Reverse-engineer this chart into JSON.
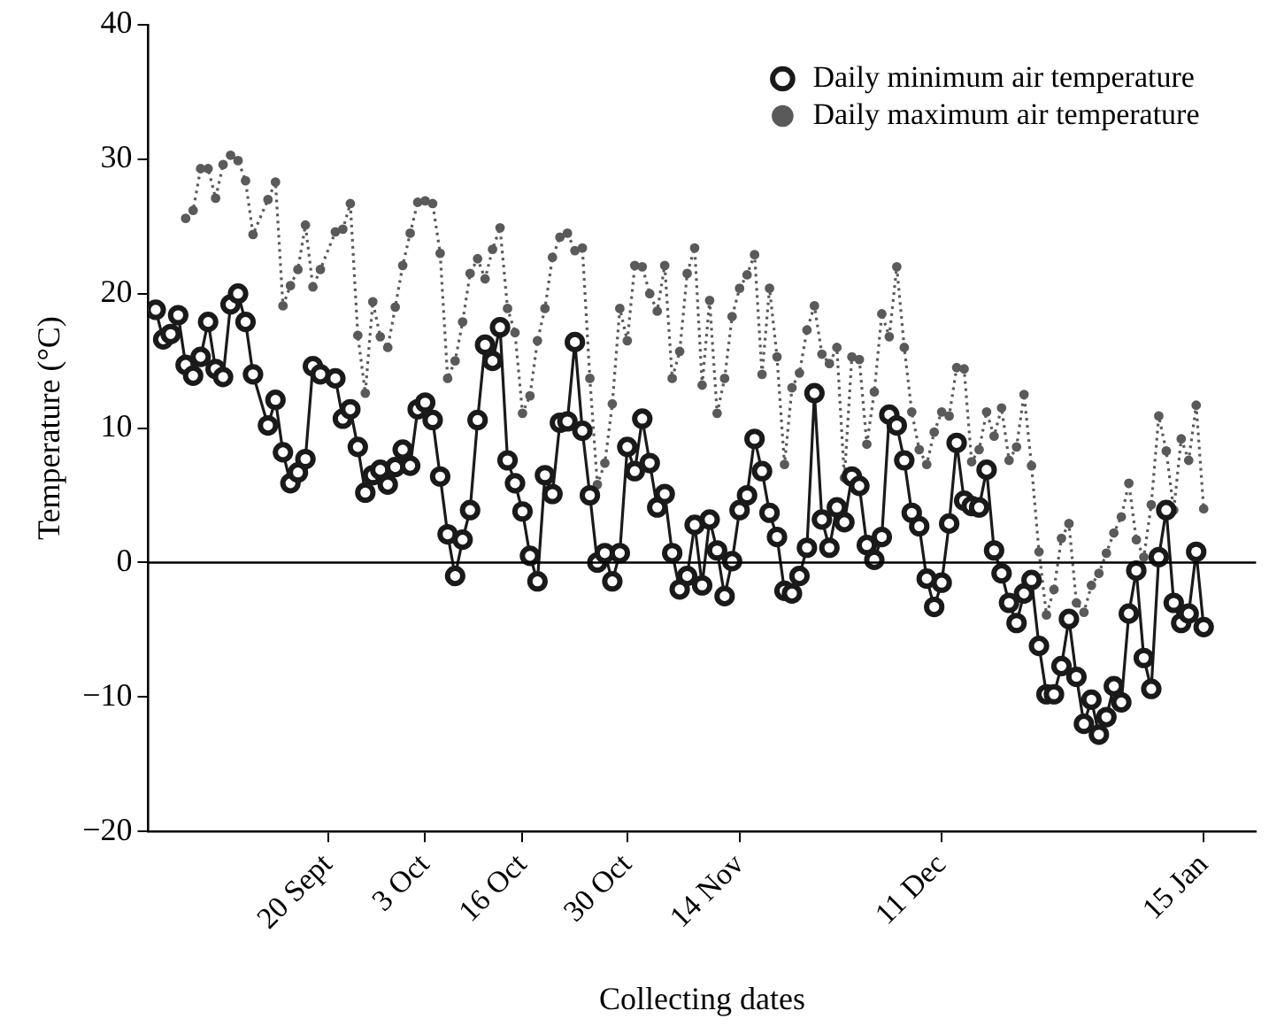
{
  "chart_data": {
    "type": "line",
    "xlabel": "Collecting dates",
    "ylabel": "Temperature (°C)",
    "categories": [
      null,
      null,
      null,
      null,
      null,
      null,
      null,
      null,
      null,
      null,
      null,
      null,
      null,
      null,
      null,
      null,
      null,
      null,
      null,
      null,
      null,
      null,
      null,
      "20 Sept",
      null,
      null,
      null,
      null,
      null,
      null,
      null,
      null,
      null,
      null,
      null,
      null,
      "3 Oct",
      null,
      null,
      null,
      null,
      null,
      null,
      null,
      null,
      null,
      null,
      null,
      null,
      "16 Oct",
      null,
      null,
      null,
      null,
      null,
      null,
      null,
      null,
      null,
      null,
      null,
      null,
      null,
      "30 Oct",
      null,
      null,
      null,
      null,
      null,
      null,
      null,
      null,
      null,
      null,
      null,
      null,
      null,
      null,
      "14 Nov",
      null,
      null,
      null,
      null,
      null,
      null,
      null,
      null,
      null,
      null,
      null,
      null,
      null,
      null,
      null,
      null,
      null,
      null,
      null,
      null,
      null,
      null,
      null,
      null,
      null,
      null,
      "11 Dec",
      null,
      null,
      null,
      null,
      null,
      null,
      null,
      null,
      null,
      null,
      null,
      null,
      null,
      null,
      null,
      null,
      null,
      null,
      null,
      null,
      null,
      null,
      null,
      null,
      null,
      null,
      null,
      null,
      null,
      null,
      null,
      null,
      null,
      null,
      "15 Jan"
    ],
    "ylim": [
      -20,
      40
    ],
    "yticks": [
      {
        "value": -20,
        "label": "−20"
      },
      {
        "value": -10,
        "label": "−10"
      },
      0,
      10,
      20,
      30,
      40
    ],
    "grid": false,
    "legend": "top right",
    "marker": "circle",
    "ref_lines": [
      {
        "axis": "y",
        "value": 0,
        "color": "#000000",
        "line_style": "solid"
      }
    ],
    "series": [
      {
        "name": "Daily minimum air temperature",
        "color": "#1a1a1a",
        "line_style": "solid",
        "values": [
          18.8,
          16.6,
          17.0,
          18.4,
          14.7,
          13.9,
          15.3,
          17.9,
          14.4,
          13.8,
          19.2,
          20.0,
          17.9,
          14.0,
          null,
          10.2,
          12.1,
          8.2,
          5.9,
          6.7,
          7.7,
          14.6,
          14.0,
          null,
          13.7,
          10.7,
          11.4,
          8.6,
          5.2,
          6.5,
          6.9,
          5.8,
          7.1,
          8.4,
          7.2,
          11.4,
          11.9,
          10.6,
          6.4,
          2.1,
          -1.0,
          1.7,
          3.9,
          10.6,
          16.2,
          15.0,
          17.5,
          7.6,
          5.9,
          3.8,
          0.5,
          -1.4,
          6.5,
          5.1,
          10.4,
          10.5,
          16.4,
          9.8,
          5.0,
          0.0,
          0.7,
          -1.4,
          0.7,
          8.6,
          6.8,
          10.7,
          7.4,
          4.1,
          5.1,
          0.7,
          -2.0,
          -1.0,
          2.8,
          -1.7,
          3.2,
          0.9,
          -2.5,
          0.1,
          3.9,
          5.0,
          9.2,
          6.8,
          3.7,
          1.9,
          -2.1,
          -2.3,
          -1.0,
          1.1,
          12.6,
          3.2,
          1.1,
          4.1,
          3.0,
          6.4,
          5.7,
          1.3,
          0.2,
          1.9,
          11.0,
          10.2,
          7.6,
          3.7,
          2.7,
          -1.2,
          -3.3,
          -1.5,
          2.9,
          8.9,
          4.6,
          4.2,
          4.1,
          6.9,
          0.9,
          -0.8,
          -3.0,
          -4.5,
          -2.3,
          -1.3,
          -6.2,
          -9.8,
          -9.8,
          -7.7,
          -4.2,
          -8.5,
          -12.0,
          -10.2,
          -12.8,
          -11.5,
          -9.2,
          -10.4,
          -3.8,
          -0.6,
          -7.1,
          -9.4,
          0.4,
          3.9,
          -3.0,
          -4.5,
          -3.8,
          0.8,
          -4.8
        ]
      },
      {
        "name": "Daily maximum air temperature",
        "color": "#5a5a5a",
        "line_style": "dotted",
        "values": [
          null,
          null,
          null,
          null,
          25.6,
          26.2,
          29.3,
          29.3,
          27.1,
          29.6,
          30.3,
          29.9,
          28.4,
          24.4,
          null,
          27.0,
          28.3,
          19.1,
          20.6,
          21.8,
          25.1,
          20.5,
          21.8,
          null,
          24.6,
          24.8,
          26.7,
          16.9,
          12.6,
          19.4,
          16.8,
          16.0,
          19.0,
          22.1,
          24.5,
          26.8,
          26.9,
          26.7,
          23.0,
          13.7,
          15.0,
          17.9,
          21.5,
          22.6,
          21.1,
          23.3,
          24.9,
          18.9,
          17.1,
          11.1,
          12.4,
          16.5,
          18.9,
          22.7,
          24.2,
          24.5,
          23.2,
          23.4,
          13.7,
          5.8,
          7.4,
          11.8,
          18.9,
          16.5,
          22.1,
          22.0,
          20.0,
          18.7,
          22.1,
          13.7,
          15.7,
          21.5,
          23.4,
          13.2,
          19.5,
          11.1,
          13.7,
          18.3,
          20.4,
          21.4,
          22.9,
          14.0,
          20.4,
          15.3,
          7.3,
          13.0,
          14.1,
          17.3,
          19.1,
          15.5,
          14.8,
          16.0,
          6.3,
          15.3,
          15.1,
          8.8,
          12.7,
          18.5,
          16.8,
          22.0,
          16.0,
          11.2,
          8.4,
          7.3,
          9.7,
          11.2,
          10.9,
          14.5,
          14.4,
          7.5,
          8.4,
          11.2,
          9.4,
          11.5,
          7.6,
          8.6,
          12.5,
          7.2,
          0.8,
          -3.9,
          -2.0,
          1.8,
          2.9,
          -3.0,
          -3.7,
          -1.7,
          -0.8,
          0.7,
          2.2,
          3.4,
          5.9,
          1.7,
          0.4,
          4.3,
          10.9,
          8.3,
          3.9,
          9.2,
          7.6,
          11.7,
          4.0
        ]
      }
    ]
  }
}
